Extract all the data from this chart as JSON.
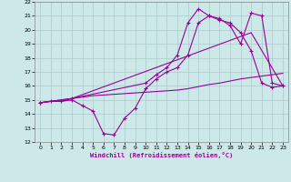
{
  "xlabel": "Windchill (Refroidissement éolien,°C)",
  "background_color": "#cce8e8",
  "grid_color": "#aacccc",
  "line_color": "#990099",
  "xlim": [
    -0.5,
    23.5
  ],
  "ylim": [
    12,
    22
  ],
  "xticks": [
    0,
    1,
    2,
    3,
    4,
    5,
    6,
    7,
    8,
    9,
    10,
    11,
    12,
    13,
    14,
    15,
    16,
    17,
    18,
    19,
    20,
    21,
    22,
    23
  ],
  "yticks": [
    12,
    13,
    14,
    15,
    16,
    17,
    18,
    19,
    20,
    21,
    22
  ],
  "series1_x": [
    0,
    1,
    2,
    3,
    4,
    5,
    6,
    7,
    8,
    9,
    10,
    11,
    12,
    13,
    14,
    15,
    16,
    17,
    18,
    19,
    20,
    21,
    22,
    23
  ],
  "series1_y": [
    14.8,
    14.9,
    14.9,
    15.0,
    14.6,
    14.2,
    12.6,
    12.5,
    13.7,
    14.4,
    15.8,
    16.5,
    17.0,
    17.3,
    18.2,
    20.5,
    21.0,
    20.7,
    20.5,
    19.8,
    18.5,
    16.2,
    15.9,
    16.0
  ],
  "series2_x": [
    0,
    1,
    2,
    3,
    4,
    5,
    6,
    7,
    8,
    9,
    10,
    11,
    12,
    13,
    14,
    15,
    16,
    17,
    18,
    19,
    20,
    21,
    22,
    23
  ],
  "series2_y": [
    14.8,
    14.9,
    14.9,
    15.1,
    15.2,
    15.3,
    15.35,
    15.4,
    15.45,
    15.5,
    15.55,
    15.6,
    15.65,
    15.7,
    15.8,
    15.95,
    16.1,
    16.2,
    16.35,
    16.5,
    16.6,
    16.7,
    16.8,
    16.9
  ],
  "series3_x": [
    0,
    3,
    10,
    11,
    12,
    13,
    14,
    15,
    16,
    17,
    18,
    19,
    20,
    21,
    22,
    23
  ],
  "series3_y": [
    14.8,
    15.1,
    16.2,
    16.8,
    17.3,
    18.2,
    20.5,
    21.5,
    21.0,
    20.8,
    20.3,
    19.0,
    21.2,
    21.0,
    16.2,
    16.0
  ],
  "series4_x": [
    0,
    3,
    20,
    23
  ],
  "series4_y": [
    14.8,
    15.1,
    19.8,
    16.0
  ]
}
